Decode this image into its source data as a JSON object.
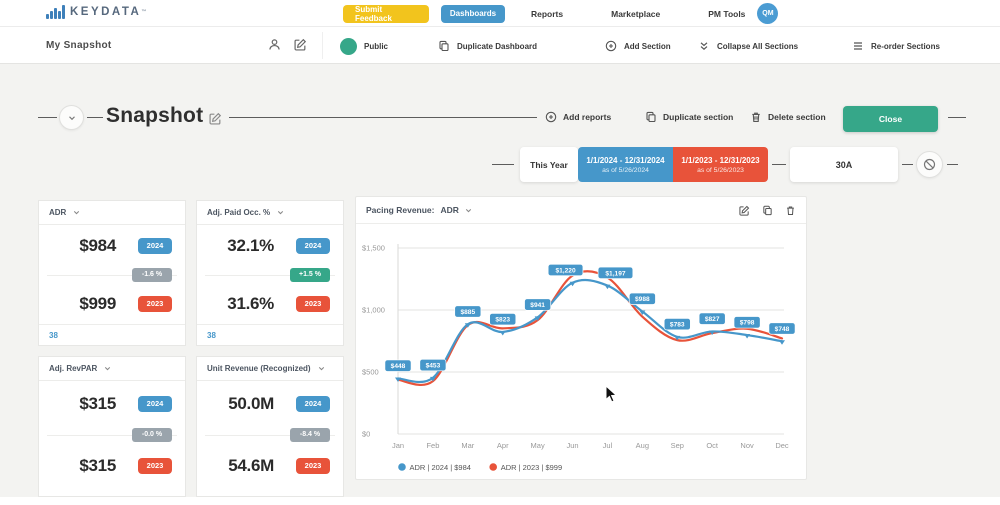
{
  "brand": {
    "name": "KEYDATA",
    "tm": "™"
  },
  "topnav": {
    "feedback_button": "Submit Feedback",
    "items": [
      {
        "label": "Dashboards",
        "active": true
      },
      {
        "label": "Reports",
        "active": false
      },
      {
        "label": "Marketplace",
        "active": false
      },
      {
        "label": "PM Tools",
        "active": false
      }
    ],
    "avatar_initials": "QM"
  },
  "dashboard_bar": {
    "title": "My Snapshot",
    "visibility_label": "Public",
    "duplicate_dashboard": "Duplicate Dashboard",
    "add_section": "Add Section",
    "collapse_all": "Collapse All Sections",
    "reorder": "Re-order Sections"
  },
  "section_header": {
    "title": "Snapshot",
    "add_reports": "Add reports",
    "duplicate_section": "Duplicate section",
    "delete_section": "Delete section",
    "close_button": "Close"
  },
  "date_filters": {
    "preset": "This Year",
    "current": {
      "range": "1/1/2024 - 12/31/2024",
      "as_of": "as of 5/26/2024"
    },
    "comparison": {
      "range": "1/1/2023 - 12/31/2023",
      "as_of": "as of 5/26/2023"
    },
    "booking_window": "30A"
  },
  "badges": {
    "year_current": "2024",
    "year_comparison": "2023"
  },
  "kpis": [
    {
      "title": "ADR",
      "value_2024": "$984",
      "delta": "-1.6 %",
      "delta_type": "negative",
      "value_2023": "$999",
      "footnote": "38"
    },
    {
      "title": "Adj. Paid Occ. %",
      "value_2024": "32.1%",
      "delta": "+1.5 %",
      "delta_type": "positive",
      "value_2023": "31.6%",
      "footnote": "38"
    },
    {
      "title": "Adj. RevPAR",
      "value_2024": "$315",
      "delta": "-0.0 %",
      "delta_type": "negative",
      "value_2023": "$315"
    },
    {
      "title": "Unit Revenue (Recognized)",
      "value_2024": "50.0M",
      "delta": "-8.4 %",
      "delta_type": "negative",
      "value_2023": "54.6M"
    }
  ],
  "chart_panel": {
    "title": "Pacing Revenue:",
    "metric": "ADR"
  },
  "chart_data": {
    "type": "line",
    "title": "Pacing Revenue: ADR",
    "categories": [
      "Jan",
      "Feb",
      "Mar",
      "Apr",
      "May",
      "Jun",
      "Jul",
      "Aug",
      "Sep",
      "Oct",
      "Nov",
      "Dec"
    ],
    "series": [
      {
        "name": "ADR | 2024 | $984",
        "color": "#4697ca",
        "values": [
          448,
          453,
          885,
          823,
          941,
          1220,
          1197,
          988,
          783,
          827,
          798,
          748
        ],
        "point_labels": true
      },
      {
        "name": "ADR | 2023 | $999",
        "color": "#e8533a",
        "values": [
          437,
          426,
          878,
          852,
          918,
          1278,
          1262,
          946,
          757,
          814,
          849,
          771
        ],
        "point_labels": false
      }
    ],
    "ylim": [
      0,
      1500
    ],
    "yticks": [
      0,
      500,
      1000,
      1500
    ],
    "ytick_labels": [
      "$0",
      "$500",
      "$1,000",
      "$1,500"
    ],
    "grid": true,
    "legend_position": "bottom"
  },
  "colors": {
    "accent_blue": "#4697ca",
    "accent_red": "#e8533a",
    "accent_green": "#36a789",
    "accent_yellow": "#f2c41d",
    "neutral_badge": "#9aa4ac"
  }
}
